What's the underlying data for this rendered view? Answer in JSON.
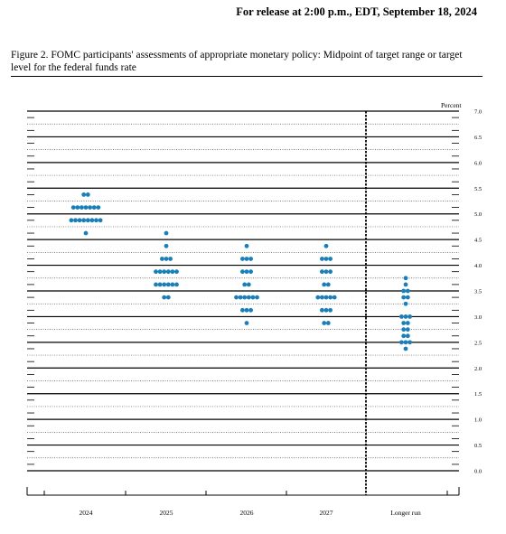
{
  "header": {
    "release_text": "For release at 2:00 p.m., EDT, September 18, 2024"
  },
  "figure": {
    "caption": "Figure 2.  FOMC participants' assessments of appropriate monetary policy: Midpoint of target range or target level for the federal funds rate"
  },
  "chart_data": {
    "type": "scatter",
    "subtype": "dot plot",
    "ylabel": "Percent",
    "ylim": [
      0,
      7.0
    ],
    "y_ticks": [
      "0.0",
      "0.5",
      "1.0",
      "1.5",
      "2.0",
      "2.5",
      "3.0",
      "3.5",
      "4.0",
      "4.5",
      "5.0",
      "5.5",
      "6.0",
      "6.5",
      "7.0"
    ],
    "categories": [
      "2024",
      "2025",
      "2026",
      "2027",
      "Longer run"
    ],
    "dot_color": "#1a7fb8",
    "series": [
      {
        "category": "2024",
        "points": [
          {
            "y": 5.375,
            "count": 2
          },
          {
            "y": 5.125,
            "count": 7
          },
          {
            "y": 4.875,
            "count": 8
          },
          {
            "y": 4.625,
            "count": 1
          }
        ]
      },
      {
        "category": "2025",
        "points": [
          {
            "y": 4.625,
            "count": 1
          },
          {
            "y": 4.375,
            "count": 1
          },
          {
            "y": 4.125,
            "count": 3
          },
          {
            "y": 3.875,
            "count": 6
          },
          {
            "y": 3.625,
            "count": 6
          },
          {
            "y": 3.375,
            "count": 2
          }
        ]
      },
      {
        "category": "2026",
        "points": [
          {
            "y": 4.375,
            "count": 1
          },
          {
            "y": 4.125,
            "count": 3
          },
          {
            "y": 3.875,
            "count": 3
          },
          {
            "y": 3.625,
            "count": 2
          },
          {
            "y": 3.375,
            "count": 6
          },
          {
            "y": 3.125,
            "count": 3
          },
          {
            "y": 2.875,
            "count": 1
          }
        ]
      },
      {
        "category": "2027",
        "points": [
          {
            "y": 4.375,
            "count": 1
          },
          {
            "y": 4.125,
            "count": 3
          },
          {
            "y": 3.875,
            "count": 3
          },
          {
            "y": 3.625,
            "count": 2
          },
          {
            "y": 3.375,
            "count": 5
          },
          {
            "y": 3.125,
            "count": 3
          },
          {
            "y": 2.875,
            "count": 2
          }
        ]
      },
      {
        "category": "Longer run",
        "points": [
          {
            "y": 3.75,
            "count": 1
          },
          {
            "y": 3.625,
            "count": 1
          },
          {
            "y": 3.5,
            "count": 2
          },
          {
            "y": 3.375,
            "count": 2
          },
          {
            "y": 3.25,
            "count": 1
          },
          {
            "y": 3.0,
            "count": 3
          },
          {
            "y": 2.875,
            "count": 2
          },
          {
            "y": 2.75,
            "count": 2
          },
          {
            "y": 2.625,
            "count": 2
          },
          {
            "y": 2.5,
            "count": 3
          },
          {
            "y": 2.375,
            "count": 1
          }
        ]
      }
    ]
  }
}
